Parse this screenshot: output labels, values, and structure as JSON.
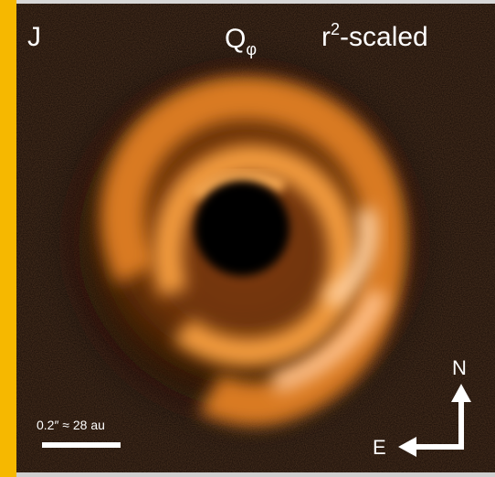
{
  "band": "J",
  "stokes": {
    "main": "Q",
    "sub": "φ"
  },
  "scaling": {
    "base": "r",
    "sup": "2",
    "rest": "-scaled"
  },
  "scale_bar": "0.2″ ≈ 28 au",
  "compass": {
    "north": "N",
    "east": "E"
  }
}
